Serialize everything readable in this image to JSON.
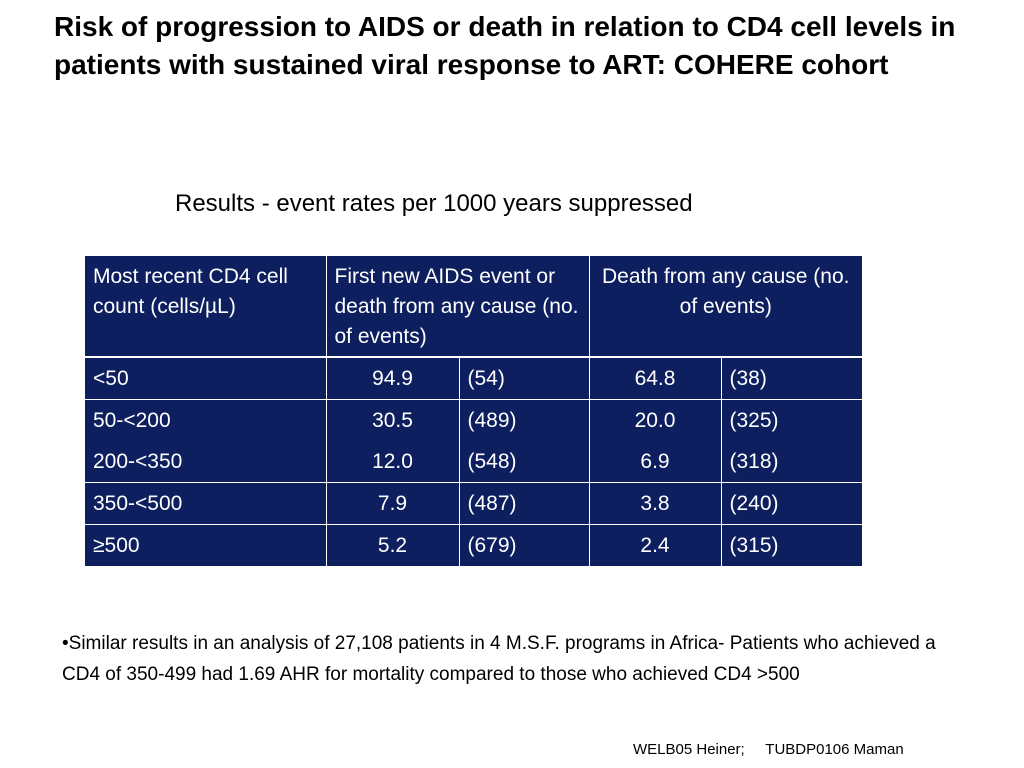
{
  "slide": {
    "title": "Risk of progression to AIDS or death in relation to CD4 cell levels in patients with sustained viral response to ART: COHERE cohort",
    "subtitle": "Results - event rates per 1000 years suppressed",
    "colors": {
      "table_bg": "#0d1f5e",
      "table_text": "#ffffff"
    },
    "table": {
      "headers": [
        "Most recent CD4 cell count (cells/µL)",
        "First new AIDS event or death from any cause (no. of events)",
        "Death from any cause (no. of events)"
      ],
      "rows": [
        {
          "cd4": "<50",
          "aids_rate": "94.9",
          "aids_events": "(54)",
          "death_rate": "64.8",
          "death_events": "(38)"
        },
        {
          "cd4": "50-<200",
          "aids_rate": "30.5",
          "aids_events": "(489)",
          "death_rate": "20.0",
          "death_events": "(325)"
        },
        {
          "cd4": "200-<350",
          "aids_rate": "12.0",
          "aids_events": "(548)",
          "death_rate": "6.9",
          "death_events": "(318)"
        },
        {
          "cd4": "350-<500",
          "aids_rate": "7.9",
          "aids_events": "(487)",
          "death_rate": "3.8",
          "death_events": "(240)"
        },
        {
          "cd4": "≥500",
          "aids_rate": "5.2",
          "aids_events": "(679)",
          "death_rate": "2.4",
          "death_events": "(315)"
        }
      ]
    },
    "note": "•Similar results in an analysis of  27,108 patients in 4 M.S.F. programs in Africa- Patients who achieved a CD4 of 350-499 had 1.69 AHR for mortality compared to those who achieved CD4 >500",
    "references": "WELB05 Heiner;     TUBDP0106 Maman"
  }
}
